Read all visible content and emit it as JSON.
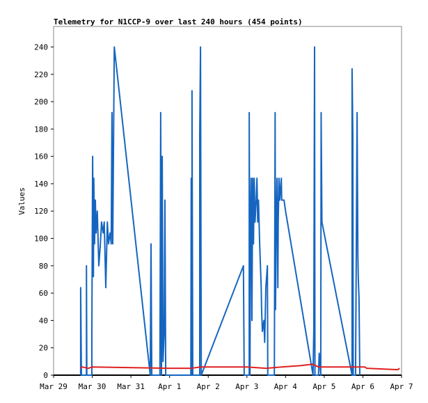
{
  "chart_data": {
    "type": "line",
    "title": "Telemetry for N1CCP-9 over last 240 hours (454 points)",
    "y_label": "Values",
    "xlim": [
      0,
      9
    ],
    "xticks": [
      {
        "value": 0,
        "label": "Mar 29"
      },
      {
        "value": 1,
        "label": "Mar 30"
      },
      {
        "value": 2,
        "label": "Mar 31"
      },
      {
        "value": 3,
        "label": "Apr 1"
      },
      {
        "value": 4,
        "label": "Apr 2"
      },
      {
        "value": 5,
        "label": "Apr 3"
      },
      {
        "value": 6,
        "label": "Apr 4"
      },
      {
        "value": 7,
        "label": "Apr 5"
      },
      {
        "value": 8,
        "label": "Apr 6"
      },
      {
        "value": 9,
        "label": "Apr 7"
      }
    ],
    "ylim": [
      0,
      255
    ],
    "yticks": [
      0,
      20,
      40,
      60,
      80,
      100,
      120,
      140,
      160,
      180,
      200,
      220,
      240
    ],
    "grid": false,
    "series": [
      {
        "color": "#1565c0",
        "x": [
          0.7,
          0.7,
          0.72,
          0.85,
          0.85,
          0.86,
          0.99,
          0.99,
          1.01,
          1.03,
          1.04,
          1.06,
          1.08,
          1.1,
          1.13,
          1.17,
          1.21,
          1.24,
          1.28,
          1.31,
          1.35,
          1.39,
          1.42,
          1.46,
          1.49,
          1.51,
          1.53,
          1.57,
          2.5,
          2.52,
          2.54,
          2.75,
          2.77,
          2.79,
          2.81,
          2.83,
          2.86,
          2.88,
          2.9,
          3.55,
          3.56,
          3.58,
          3.58,
          3.6,
          3.78,
          3.78,
          3.8,
          3.82,
          4.91,
          4.93,
          5.06,
          5.06,
          5.08,
          5.09,
          5.11,
          5.13,
          5.15,
          5.17,
          5.19,
          5.21,
          5.24,
          5.26,
          5.28,
          5.3,
          5.33,
          5.37,
          5.38,
          5.4,
          5.44,
          5.46,
          5.49,
          5.53,
          5.54,
          5.71,
          5.73,
          5.74,
          5.76,
          5.78,
          5.8,
          5.81,
          5.83,
          5.85,
          5.89,
          5.9,
          5.96,
          6.0,
          6.71,
          6.73,
          6.75,
          6.76,
          6.85,
          6.87,
          6.91,
          6.92,
          6.94,
          7.72,
          7.72,
          7.74,
          7.75,
          7.81,
          7.83,
          7.85,
          7.87,
          7.88,
          7.9,
          7.92
        ],
        "values": [
          0,
          64,
          0,
          0,
          80,
          0,
          0,
          32,
          160,
          72,
          144,
          96,
          128,
          104,
          120,
          80,
          96,
          112,
          104,
          112,
          64,
          112,
          96,
          104,
          96,
          192,
          96,
          240,
          0,
          96,
          0,
          0,
          192,
          0,
          160,
          10,
          30,
          128,
          0,
          0,
          144,
          0,
          208,
          0,
          0,
          176,
          240,
          0,
          80,
          0,
          0,
          192,
          0,
          104,
          144,
          40,
          144,
          96,
          144,
          112,
          128,
          144,
          112,
          128,
          96,
          64,
          48,
          32,
          40,
          24,
          64,
          80,
          0,
          0,
          192,
          48,
          112,
          144,
          64,
          112,
          144,
          128,
          144,
          128,
          128,
          120,
          0,
          32,
          240,
          0,
          0,
          16,
          0,
          192,
          112,
          0,
          224,
          176,
          0,
          0,
          96,
          192,
          88,
          72,
          56,
          0
        ]
      },
      {
        "color": "#e02020",
        "x": [
          0.7,
          0.74,
          0.9,
          1.0,
          3.0,
          3.55,
          3.8,
          5.0,
          5.5,
          5.9,
          6.4,
          6.7,
          6.85,
          8.05,
          8.1,
          8.9,
          8.95
        ],
        "values": [
          5,
          6,
          5,
          6,
          5,
          5,
          6,
          6,
          5,
          6,
          7,
          8,
          6,
          6,
          5,
          4,
          5
        ]
      }
    ]
  }
}
